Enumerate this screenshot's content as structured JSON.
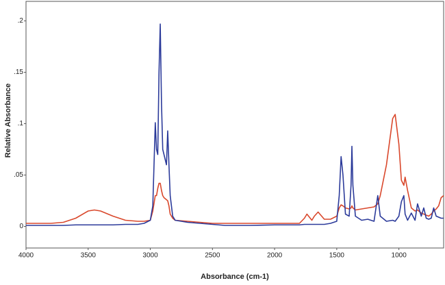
{
  "chart_data": {
    "type": "line",
    "xlabel": "Absorbance (cm-1)",
    "ylabel": "Relative Absorbance",
    "x": [
      4000,
      3900,
      3800,
      3700,
      3600,
      3500,
      3450,
      3400,
      3300,
      3200,
      3100,
      3050,
      3000,
      2980,
      2960,
      2950,
      2940,
      2930,
      2920,
      2910,
      2900,
      2890,
      2880,
      2870,
      2860,
      2850,
      2840,
      2820,
      2800,
      2700,
      2600,
      2500,
      2400,
      2200,
      2000,
      1800,
      1760,
      1740,
      1700,
      1680,
      1650,
      1600,
      1550,
      1500,
      1480,
      1465,
      1450,
      1430,
      1400,
      1385,
      1378,
      1370,
      1350,
      1300,
      1250,
      1200,
      1170,
      1150,
      1100,
      1050,
      1030,
      1000,
      980,
      960,
      950,
      930,
      900,
      870,
      850,
      820,
      800,
      780,
      760,
      740,
      720,
      700,
      680,
      660,
      640
    ],
    "series": [
      {
        "color": "#d9472b",
        "values": [
          0.003,
          0.003,
          0.003,
          0.004,
          0.008,
          0.015,
          0.016,
          0.015,
          0.01,
          0.006,
          0.005,
          0.005,
          0.006,
          0.015,
          0.03,
          0.03,
          0.037,
          0.042,
          0.042,
          0.035,
          0.03,
          0.028,
          0.027,
          0.026,
          0.025,
          0.02,
          0.012,
          0.008,
          0.006,
          0.005,
          0.004,
          0.003,
          0.003,
          0.003,
          0.003,
          0.003,
          0.008,
          0.012,
          0.006,
          0.01,
          0.014,
          0.007,
          0.007,
          0.01,
          0.018,
          0.021,
          0.02,
          0.018,
          0.017,
          0.018,
          0.02,
          0.018,
          0.016,
          0.017,
          0.018,
          0.019,
          0.022,
          0.03,
          0.06,
          0.105,
          0.109,
          0.08,
          0.045,
          0.04,
          0.048,
          0.035,
          0.018,
          0.015,
          0.016,
          0.013,
          0.012,
          0.011,
          0.01,
          0.012,
          0.015,
          0.017,
          0.02,
          0.028,
          0.03
        ]
      },
      {
        "color": "#2b3a9a",
        "values": [
          0.001,
          0.001,
          0.001,
          0.001,
          0.0015,
          0.0015,
          0.0015,
          0.0015,
          0.0015,
          0.002,
          0.002,
          0.003,
          0.006,
          0.02,
          0.101,
          0.075,
          0.07,
          0.15,
          0.197,
          0.12,
          0.075,
          0.07,
          0.065,
          0.06,
          0.093,
          0.06,
          0.03,
          0.01,
          0.006,
          0.004,
          0.003,
          0.002,
          0.001,
          0.001,
          0.0015,
          0.0015,
          0.002,
          0.002,
          0.002,
          0.002,
          0.002,
          0.002,
          0.003,
          0.005,
          0.03,
          0.068,
          0.05,
          0.012,
          0.01,
          0.04,
          0.078,
          0.04,
          0.01,
          0.006,
          0.007,
          0.005,
          0.03,
          0.01,
          0.005,
          0.006,
          0.005,
          0.01,
          0.024,
          0.03,
          0.012,
          0.006,
          0.013,
          0.006,
          0.022,
          0.01,
          0.018,
          0.008,
          0.007,
          0.008,
          0.018,
          0.01,
          0.009,
          0.008,
          0.008
        ]
      }
    ],
    "xlim": [
      4000,
      640
    ],
    "xticks": [
      4000,
      3500,
      3000,
      2500,
      2000,
      1500,
      1000
    ],
    "ylim": [
      -0.021,
      0.219
    ],
    "yticks": [
      {
        "value": 0,
        "label": "0"
      },
      {
        "value": 0.05,
        "label": ".05"
      },
      {
        "value": 0.1,
        "label": ".1"
      },
      {
        "value": 0.15,
        "label": ".15"
      },
      {
        "value": 0.2,
        "label": ".2"
      }
    ]
  }
}
